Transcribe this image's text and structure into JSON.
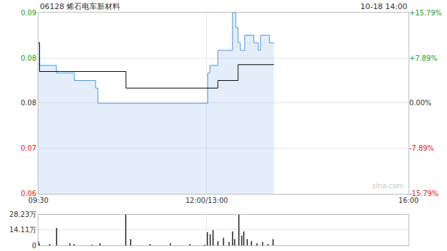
{
  "chart_data": [
    {
      "type": "line",
      "title": "06128 烯石电车新材料",
      "subtitle": "10-18 14:00",
      "annotations": [
        "sina.com"
      ],
      "grid": true,
      "xlim": [
        0,
        330
      ],
      "xticks": [
        {
          "value": 0,
          "label": "09:30"
        },
        {
          "value": 150,
          "label": "12:00/13:00"
        },
        {
          "value": 330,
          "label": "16:00"
        }
      ],
      "ylim": [
        0.064,
        0.088
      ],
      "yticks": [
        {
          "value": 0.088,
          "label": "0.09"
        },
        {
          "value": 0.082,
          "label": "0.08"
        },
        {
          "value": 0.076,
          "label": "0.08"
        },
        {
          "value": 0.07,
          "label": "0.07"
        },
        {
          "value": 0.064,
          "label": "0.06"
        }
      ],
      "y2lim": [
        -15.79,
        15.79
      ],
      "y2ticks": [
        {
          "value": 15.79,
          "label": "+15.79%"
        },
        {
          "value": 7.89,
          "label": "+7.89%"
        },
        {
          "value": 0,
          "label": "0.00%"
        },
        {
          "value": -7.89,
          "label": "-7.89%"
        },
        {
          "value": -15.79,
          "label": "-15.79%"
        }
      ],
      "series": [
        {
          "color": "#4a90e2",
          "x": [
            0,
            1,
            16,
            32,
            51,
            53,
            151,
            153,
            160,
            173,
            176,
            178,
            180,
            184,
            192,
            196,
            198,
            206,
            210
          ],
          "values": [
            0.084,
            0.081,
            0.08,
            0.079,
            0.078,
            0.076,
            0.08,
            0.081,
            0.083,
            0.088,
            0.086,
            0.084,
            0.083,
            0.085,
            0.084,
            0.083,
            0.085,
            0.084,
            0.084
          ]
        },
        {
          "color": "#000000",
          "x": [
            0,
            1,
            78,
            160,
            178,
            210
          ],
          "values": [
            0.084,
            0.0802,
            0.078,
            0.079,
            0.0811,
            0.0811
          ]
        }
      ]
    },
    {
      "type": "bar",
      "color": "#555555",
      "tick_labels": "y",
      "xlim": [
        0,
        330
      ],
      "ylim": [
        0,
        282300
      ],
      "yticks": [
        0,
        {
          "value": 141100,
          "label": "14.11万"
        },
        {
          "value": 282300,
          "label": "28.23万"
        }
      ],
      "x": [
        0,
        1,
        10,
        16,
        28,
        32,
        48,
        55,
        78,
        82,
        100,
        118,
        135,
        148,
        151,
        153,
        156,
        160,
        165,
        170,
        173,
        175,
        179,
        181,
        183,
        186,
        190,
        195,
        200,
        205,
        209
      ],
      "values": [
        40000,
        20000,
        15000,
        160000,
        20000,
        15000,
        10000,
        20000,
        280000,
        60000,
        15000,
        20000,
        15000,
        10000,
        120000,
        100000,
        140000,
        40000,
        70000,
        30000,
        130000,
        60000,
        280000,
        90000,
        130000,
        60000,
        40000,
        20000,
        30000,
        15000,
        60000
      ]
    }
  ]
}
